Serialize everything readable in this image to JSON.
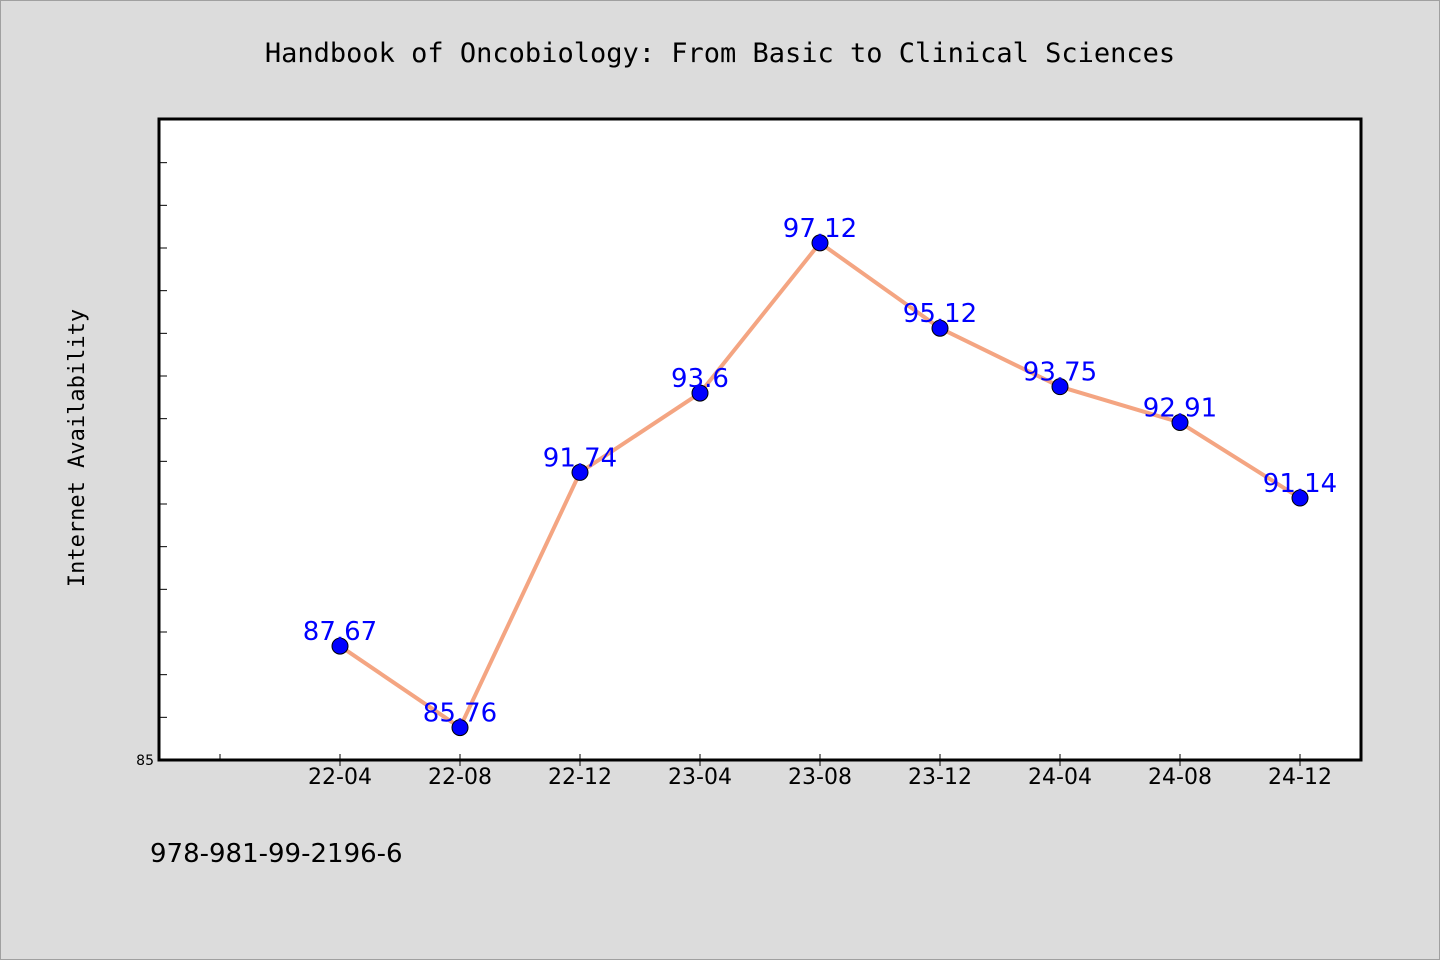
{
  "chart_data": {
    "type": "line",
    "title": "Handbook of Oncobiology: From Basic to Clinical Sciences",
    "xlabel": "",
    "ylabel": "Internet Availability",
    "categories": [
      "22-04",
      "22-08",
      "22-12",
      "23-04",
      "23-08",
      "23-12",
      "24-04",
      "24-08",
      "24-12"
    ],
    "series": [
      {
        "values": [
          87.67,
          85.76,
          91.74,
          93.6,
          97.12,
          95.12,
          93.75,
          92.91,
          91.14
        ],
        "labels": [
          "87.67",
          "85.76",
          "91.74",
          "93.6",
          "97.12",
          "95.12",
          "93.75",
          "92.91",
          "91.14"
        ]
      }
    ],
    "ylim": [
      85,
      100
    ],
    "ytick_labels": [
      "85"
    ],
    "grid": false,
    "legend": "none",
    "colors": {
      "line": "#f4a582",
      "marker": "#0000ff",
      "data_label": "#0000ff",
      "background": "#dcdcdc",
      "plot_background": "#ffffff"
    }
  },
  "footer": {
    "isbn": "978-981-99-2196-6"
  }
}
